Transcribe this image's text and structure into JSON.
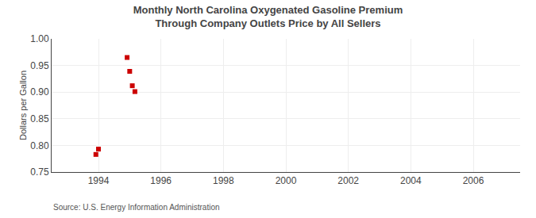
{
  "chart_data": {
    "type": "scatter",
    "title": "Monthly North Carolina Oxygenated Gasoline Premium Through Company Outlets Price by All Sellers",
    "ylabel": "Dollars per Gallon",
    "source": "Source: U.S. Energy Information Administration",
    "x": [
      1993.917,
      1994.0,
      1994.917,
      1995.0,
      1995.083,
      1995.167
    ],
    "values": [
      0.783,
      0.793,
      0.965,
      0.939,
      0.912,
      0.901
    ],
    "color": "#cc0000",
    "marker": "square",
    "xlim": [
      1992.5,
      2007.5
    ],
    "ylim": [
      0.75,
      1.0
    ],
    "xticks": [
      1994,
      1996,
      1998,
      2000,
      2002,
      2004,
      2006
    ],
    "yticks": [
      0.75,
      {
        "value": 0.8,
        "label": "0.80"
      },
      0.85,
      {
        "value": 0.9,
        "label": "0.90"
      },
      0.95,
      {
        "value": 1.0,
        "label": "1.00"
      }
    ],
    "grid": true
  }
}
